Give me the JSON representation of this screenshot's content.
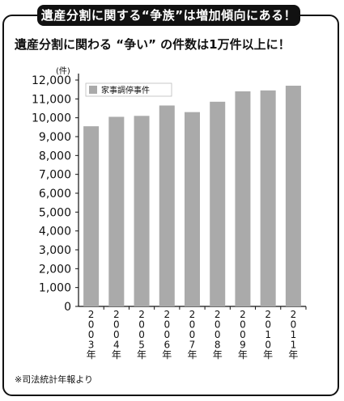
{
  "banner": {
    "title": "遺産分割に関する“争族”は増加傾向にある！"
  },
  "subtitle": "遺産分割に関わる “争い” の件数は1万件以上に！",
  "note": "※司法統計年報より",
  "colors": {
    "bar": "#aaaaaa",
    "axis": "#111111",
    "banner_bg": "#111111"
  },
  "chart_data": {
    "type": "bar",
    "title": "",
    "ylabel": "(件)",
    "xlabel": "",
    "ylim": [
      0,
      12000
    ],
    "yticks": [
      "0",
      "1,000",
      "2,000",
      "3,000",
      "4,000",
      "5,000",
      "6,000",
      "7,000",
      "8,000",
      "9,000",
      "10,000",
      "11,000",
      "12,000"
    ],
    "categories": [
      "2003年",
      "2004年",
      "2005年",
      "2006年",
      "2007年",
      "2008年",
      "2009年",
      "2010年",
      "2011年"
    ],
    "series": [
      {
        "name": "家事調停事件",
        "values": [
          9550,
          10050,
          10100,
          10650,
          10300,
          10850,
          11400,
          11450,
          11700
        ]
      }
    ],
    "legend": "top-left",
    "grid": false
  }
}
